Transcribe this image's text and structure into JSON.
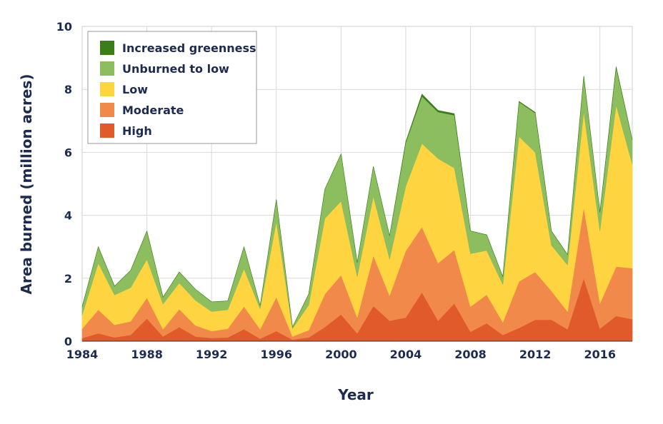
{
  "chart_data": {
    "type": "area",
    "stacked": true,
    "title": "",
    "xlabel": "Year",
    "ylabel": "Area burned (million acres)",
    "xlim": [
      1984,
      2018
    ],
    "ylim": [
      0,
      10
    ],
    "xticks": [
      "1984",
      "1988",
      "1992",
      "1996",
      "2000",
      "2004",
      "2008",
      "2012",
      "2016"
    ],
    "yticks": [
      "0",
      "2",
      "4",
      "6",
      "8",
      "10"
    ],
    "grid": true,
    "legend_position": "top-left",
    "x": [
      1984,
      1985,
      1986,
      1987,
      1988,
      1989,
      1990,
      1991,
      1992,
      1993,
      1994,
      1995,
      1996,
      1997,
      1998,
      1999,
      2000,
      2001,
      2002,
      2003,
      2004,
      2005,
      2006,
      2007,
      2008,
      2009,
      2010,
      2011,
      2012,
      2013,
      2014,
      2015,
      2016,
      2017,
      2018
    ],
    "series": [
      {
        "name": "High",
        "color": "#e05a2b",
        "values": [
          0.1,
          0.25,
          0.12,
          0.2,
          0.72,
          0.15,
          0.45,
          0.15,
          0.1,
          0.12,
          0.38,
          0.08,
          0.32,
          0.05,
          0.12,
          0.45,
          0.85,
          0.25,
          1.12,
          0.65,
          0.75,
          1.55,
          0.65,
          1.2,
          0.3,
          0.57,
          0.2,
          0.42,
          0.68,
          0.68,
          0.38,
          2.0,
          0.4,
          0.8,
          0.7
        ]
      },
      {
        "name": "Moderate",
        "color": "#f0894a",
        "values": [
          0.3,
          0.75,
          0.4,
          0.43,
          0.66,
          0.23,
          0.57,
          0.35,
          0.22,
          0.28,
          0.72,
          0.3,
          1.08,
          0.1,
          0.23,
          1.05,
          1.25,
          0.5,
          1.6,
          0.8,
          2.12,
          2.08,
          1.83,
          1.7,
          0.8,
          0.91,
          0.4,
          1.48,
          1.52,
          0.92,
          0.56,
          2.25,
          0.8,
          1.57,
          1.62
        ]
      },
      {
        "name": "Low",
        "color": "#fed440",
        "values": [
          0.43,
          1.48,
          0.95,
          1.07,
          1.22,
          0.8,
          0.83,
          0.8,
          0.62,
          0.6,
          1.2,
          0.65,
          2.4,
          0.25,
          0.8,
          2.4,
          2.35,
          1.3,
          1.88,
          1.15,
          2.05,
          2.65,
          3.32,
          2.6,
          1.68,
          1.4,
          1.2,
          4.6,
          3.8,
          1.45,
          1.48,
          3.05,
          2.3,
          5.13,
          3.3
        ]
      },
      {
        "name": "Unburned to low",
        "color": "#8cbd5e",
        "values": [
          0.27,
          0.52,
          0.28,
          0.55,
          0.9,
          0.22,
          0.35,
          0.35,
          0.31,
          0.28,
          0.7,
          0.1,
          0.7,
          0.05,
          0.35,
          0.93,
          1.5,
          0.45,
          0.95,
          0.75,
          1.38,
          1.5,
          1.48,
          1.68,
          0.72,
          0.5,
          0.25,
          1.1,
          1.25,
          0.45,
          0.33,
          1.12,
          0.6,
          1.2,
          0.78
        ]
      },
      {
        "name": "Increased greenness",
        "color": "#3a7d1a",
        "values": [
          0,
          0,
          0,
          0,
          0,
          0,
          0,
          0,
          0,
          0,
          0,
          0,
          0,
          0,
          0,
          0,
          0,
          0,
          0,
          0,
          0.03,
          0.07,
          0.05,
          0.05,
          0,
          0,
          0,
          0.02,
          0.02,
          0,
          0,
          0,
          0,
          0.02,
          0
        ]
      }
    ]
  }
}
